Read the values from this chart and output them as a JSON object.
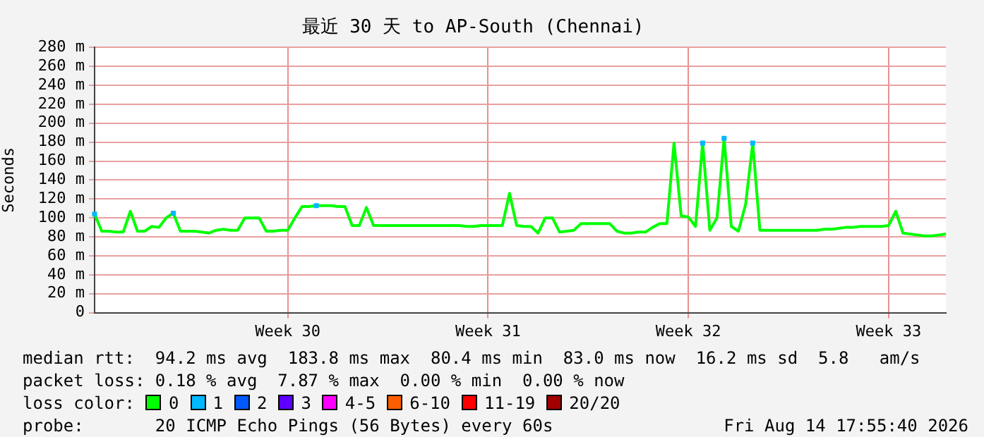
{
  "chart_data": {
    "type": "line",
    "title": "最近 30 天 to AP-South (Chennai)",
    "ylabel": "Seconds",
    "legend_title": "loss color:",
    "legend": "bottom",
    "grid": true,
    "categories": [
      null,
      null,
      null,
      null,
      null,
      null,
      null,
      null,
      null,
      null,
      null,
      null,
      null,
      null,
      null,
      null,
      null,
      null,
      null,
      null,
      null,
      null,
      null,
      null,
      null,
      null,
      null,
      "Week 30",
      null,
      null,
      null,
      null,
      null,
      null,
      null,
      null,
      null,
      null,
      null,
      null,
      null,
      null,
      null,
      null,
      null,
      null,
      null,
      null,
      null,
      null,
      null,
      null,
      null,
      null,
      null,
      "Week 31",
      null,
      null,
      null,
      null,
      null,
      null,
      null,
      null,
      null,
      null,
      null,
      null,
      null,
      null,
      null,
      null,
      null,
      null,
      null,
      null,
      null,
      null,
      null,
      null,
      null,
      null,
      null,
      "Week 32",
      null,
      null,
      null,
      null,
      null,
      null,
      null,
      null,
      null,
      null,
      null,
      null,
      null,
      null,
      null,
      null,
      null,
      null,
      null,
      null,
      null,
      null,
      null,
      null,
      null,
      null,
      null,
      "Week 33",
      null,
      null,
      null,
      null,
      null,
      null,
      null,
      null
    ],
    "ylim": [
      0,
      280
    ],
    "yticks": [
      0,
      {
        "value": 20,
        "label": "20 m"
      },
      {
        "value": 40,
        "label": "40 m"
      },
      {
        "value": 60,
        "label": "60 m"
      },
      {
        "value": 80,
        "label": "80 m"
      },
      {
        "value": 100,
        "label": "100 m"
      },
      {
        "value": 120,
        "label": "120 m"
      },
      {
        "value": 140,
        "label": "140 m"
      },
      {
        "value": 160,
        "label": "160 m"
      },
      {
        "value": 180,
        "label": "180 m"
      },
      {
        "value": 200,
        "label": "200 m"
      },
      {
        "value": 220,
        "label": "220 m"
      },
      {
        "value": 240,
        "label": "240 m"
      },
      {
        "value": 260,
        "label": "260 m"
      },
      {
        "value": 280,
        "label": "280 m"
      }
    ],
    "series": [
      {
        "name": "0",
        "color": "#00ff00",
        "values": [
          104,
          86,
          86,
          85,
          85,
          107,
          86,
          86,
          91,
          90,
          100,
          105,
          86,
          86,
          86,
          85,
          84,
          87,
          88,
          87,
          87,
          100,
          100,
          100,
          86,
          86,
          87,
          87,
          100,
          112,
          112,
          113,
          113,
          113,
          112,
          112,
          92,
          92,
          111,
          92,
          92,
          92,
          92,
          92,
          92,
          92,
          92,
          92,
          92,
          92,
          92,
          92,
          91,
          91,
          92,
          92,
          92,
          92,
          126,
          92,
          91,
          91,
          84,
          100,
          100,
          85,
          86,
          87,
          94,
          94,
          94,
          94,
          94,
          86,
          84,
          84,
          85,
          85,
          90,
          94,
          94,
          179,
          102,
          101,
          91,
          179,
          87,
          100,
          184,
          91,
          86,
          114,
          179,
          87,
          87,
          87,
          87,
          87,
          87,
          87,
          87,
          87,
          88,
          88,
          89,
          90,
          90,
          91,
          91,
          91,
          91,
          92,
          107,
          84,
          83,
          82,
          81,
          81,
          82,
          83
        ]
      },
      {
        "name": "1",
        "color": "#00b8ff",
        "type": "scatter",
        "marker": "square",
        "values": [
          104,
          null,
          null,
          null,
          null,
          null,
          null,
          null,
          null,
          null,
          null,
          105,
          null,
          null,
          null,
          null,
          null,
          null,
          null,
          null,
          null,
          null,
          null,
          null,
          null,
          null,
          null,
          null,
          null,
          null,
          null,
          113,
          null,
          null,
          null,
          null,
          null,
          null,
          null,
          null,
          null,
          null,
          null,
          null,
          null,
          null,
          null,
          null,
          null,
          null,
          null,
          null,
          null,
          null,
          null,
          null,
          null,
          null,
          null,
          null,
          null,
          null,
          null,
          null,
          null,
          null,
          null,
          null,
          null,
          null,
          null,
          null,
          null,
          null,
          null,
          null,
          null,
          null,
          null,
          null,
          null,
          null,
          null,
          null,
          null,
          179,
          null,
          null,
          184,
          null,
          null,
          null,
          179,
          null,
          null,
          null,
          null,
          null,
          null,
          null,
          null,
          null,
          null,
          null,
          null,
          null,
          null,
          null,
          null,
          null,
          null,
          null,
          null,
          null,
          null,
          null,
          null,
          null,
          null,
          null
        ]
      },
      {
        "name": "2",
        "color": "#0059ff",
        "values": [
          null,
          null,
          null,
          null,
          null,
          null,
          null,
          null,
          null,
          null,
          null,
          null,
          null,
          null,
          null,
          null,
          null,
          null,
          null,
          null,
          null,
          null,
          null,
          null,
          null,
          null,
          null,
          null,
          null,
          null,
          null,
          null,
          null,
          null,
          null,
          null,
          null,
          null,
          null,
          null,
          null,
          null,
          null,
          null,
          null,
          null,
          null,
          null,
          null,
          null,
          null,
          null,
          null,
          null,
          null,
          null,
          null,
          null,
          null,
          null,
          null,
          null,
          null,
          null,
          null,
          null,
          null,
          null,
          null,
          null,
          null,
          null,
          null,
          null,
          null,
          null,
          null,
          null,
          null,
          null,
          null,
          null,
          null,
          null,
          null,
          null,
          null,
          null,
          null,
          null,
          null,
          null,
          null,
          null,
          null,
          null,
          null,
          null,
          null,
          null,
          null,
          null,
          null,
          null,
          null,
          null,
          null,
          null,
          null,
          null,
          null,
          null,
          null,
          null,
          null,
          null,
          null,
          null,
          null,
          null
        ]
      },
      {
        "name": "3",
        "color": "#5e00ff",
        "values": [
          null,
          null,
          null,
          null,
          null,
          null,
          null,
          null,
          null,
          null,
          null,
          null,
          null,
          null,
          null,
          null,
          null,
          null,
          null,
          null,
          null,
          null,
          null,
          null,
          null,
          null,
          null,
          null,
          null,
          null,
          null,
          null,
          null,
          null,
          null,
          null,
          null,
          null,
          null,
          null,
          null,
          null,
          null,
          null,
          null,
          null,
          null,
          null,
          null,
          null,
          null,
          null,
          null,
          null,
          null,
          null,
          null,
          null,
          null,
          null,
          null,
          null,
          null,
          null,
          null,
          null,
          null,
          null,
          null,
          null,
          null,
          null,
          null,
          null,
          null,
          null,
          null,
          null,
          null,
          null,
          null,
          null,
          null,
          null,
          null,
          null,
          null,
          null,
          null,
          null,
          null,
          null,
          null,
          null,
          null,
          null,
          null,
          null,
          null,
          null,
          null,
          null,
          null,
          null,
          null,
          null,
          null,
          null,
          null,
          null,
          null,
          null,
          null,
          null,
          null,
          null,
          null,
          null,
          null,
          null
        ]
      },
      {
        "name": "4-5",
        "color": "#ff00ff",
        "values": [
          null,
          null,
          null,
          null,
          null,
          null,
          null,
          null,
          null,
          null,
          null,
          null,
          null,
          null,
          null,
          null,
          null,
          null,
          null,
          null,
          null,
          null,
          null,
          null,
          null,
          null,
          null,
          null,
          null,
          null,
          null,
          null,
          null,
          null,
          null,
          null,
          null,
          null,
          null,
          null,
          null,
          null,
          null,
          null,
          null,
          null,
          null,
          null,
          null,
          null,
          null,
          null,
          null,
          null,
          null,
          null,
          null,
          null,
          null,
          null,
          null,
          null,
          null,
          null,
          null,
          null,
          null,
          null,
          null,
          null,
          null,
          null,
          null,
          null,
          null,
          null,
          null,
          null,
          null,
          null,
          null,
          null,
          null,
          null,
          null,
          null,
          null,
          null,
          null,
          null,
          null,
          null,
          null,
          null,
          null,
          null,
          null,
          null,
          null,
          null,
          null,
          null,
          null,
          null,
          null,
          null,
          null,
          null,
          null,
          null,
          null,
          null,
          null,
          null,
          null,
          null,
          null,
          null,
          null,
          null
        ]
      },
      {
        "name": "6-10",
        "color": "#ff5e00",
        "values": [
          null,
          null,
          null,
          null,
          null,
          null,
          null,
          null,
          null,
          null,
          null,
          null,
          null,
          null,
          null,
          null,
          null,
          null,
          null,
          null,
          null,
          null,
          null,
          null,
          null,
          null,
          null,
          null,
          null,
          null,
          null,
          null,
          null,
          null,
          null,
          null,
          null,
          null,
          null,
          null,
          null,
          null,
          null,
          null,
          null,
          null,
          null,
          null,
          null,
          null,
          null,
          null,
          null,
          null,
          null,
          null,
          null,
          null,
          null,
          null,
          null,
          null,
          null,
          null,
          null,
          null,
          null,
          null,
          null,
          null,
          null,
          null,
          null,
          null,
          null,
          null,
          null,
          null,
          null,
          null,
          null,
          null,
          null,
          null,
          null,
          null,
          null,
          null,
          null,
          null,
          null,
          null,
          null,
          null,
          null,
          null,
          null,
          null,
          null,
          null,
          null,
          null,
          null,
          null,
          null,
          null,
          null,
          null,
          null,
          null,
          null,
          null,
          null,
          null,
          null,
          null,
          null,
          null,
          null,
          null
        ]
      },
      {
        "name": "11-19",
        "color": "#ff0000",
        "values": [
          null,
          null,
          null,
          null,
          null,
          null,
          null,
          null,
          null,
          null,
          null,
          null,
          null,
          null,
          null,
          null,
          null,
          null,
          null,
          null,
          null,
          null,
          null,
          null,
          null,
          null,
          null,
          null,
          null,
          null,
          null,
          null,
          null,
          null,
          null,
          null,
          null,
          null,
          null,
          null,
          null,
          null,
          null,
          null,
          null,
          null,
          null,
          null,
          null,
          null,
          null,
          null,
          null,
          null,
          null,
          null,
          null,
          null,
          null,
          null,
          null,
          null,
          null,
          null,
          null,
          null,
          null,
          null,
          null,
          null,
          null,
          null,
          null,
          null,
          null,
          null,
          null,
          null,
          null,
          null,
          null,
          null,
          null,
          null,
          null,
          null,
          null,
          null,
          null,
          null,
          null,
          null,
          null,
          null,
          null,
          null,
          null,
          null,
          null,
          null,
          null,
          null,
          null,
          null,
          null,
          null,
          null,
          null,
          null,
          null,
          null,
          null,
          null,
          null,
          null,
          null,
          null,
          null,
          null,
          null
        ]
      },
      {
        "name": "20/20",
        "color": "#a10000",
        "values": [
          null,
          null,
          null,
          null,
          null,
          null,
          null,
          null,
          null,
          null,
          null,
          null,
          null,
          null,
          null,
          null,
          null,
          null,
          null,
          null,
          null,
          null,
          null,
          null,
          null,
          null,
          null,
          null,
          null,
          null,
          null,
          null,
          null,
          null,
          null,
          null,
          null,
          null,
          null,
          null,
          null,
          null,
          null,
          null,
          null,
          null,
          null,
          null,
          null,
          null,
          null,
          null,
          null,
          null,
          null,
          null,
          null,
          null,
          null,
          null,
          null,
          null,
          null,
          null,
          null,
          null,
          null,
          null,
          null,
          null,
          null,
          null,
          null,
          null,
          null,
          null,
          null,
          null,
          null,
          null,
          null,
          null,
          null,
          null,
          null,
          null,
          null,
          null,
          null,
          null,
          null,
          null,
          null,
          null,
          null,
          null,
          null,
          null,
          null,
          null,
          null,
          null,
          null,
          null,
          null,
          null,
          null,
          null,
          null,
          null,
          null,
          null,
          null,
          null,
          null,
          null,
          null,
          null,
          null,
          null
        ]
      }
    ],
    "annotations": [
      "median rtt:  94.2 ms avg  183.8 ms max  80.4 ms min  83.0 ms now  16.2 ms sd  5.8   am/s",
      "packet loss: 0.18 % avg  7.87 % max  0.00 % min  0.00 % now",
      "probe:       20 ICMP Echo Pings (56 Bytes) every 60s",
      "Fri Aug 14 17:55:40 2026"
    ]
  }
}
